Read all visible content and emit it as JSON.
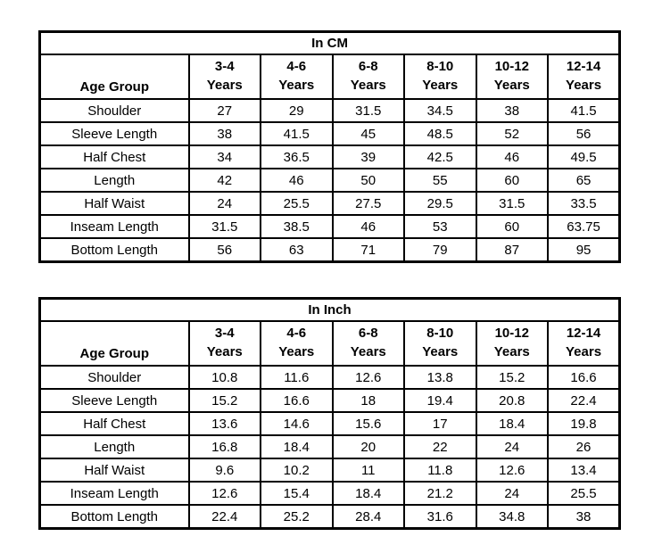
{
  "colors": {
    "border": "#000000",
    "text": "#000000",
    "background": "#ffffff"
  },
  "chart_data": [
    {
      "type": "table",
      "title": "In CM",
      "columns": [
        "Age Group",
        "3-4 Years",
        "4-6 Years",
        "6-8 Years",
        "8-10 Years",
        "10-12 Years",
        "12-14 Years"
      ],
      "rows": [
        [
          "Shoulder",
          27,
          29,
          31.5,
          34.5,
          38,
          41.5
        ],
        [
          "Sleeve Length",
          38,
          41.5,
          45,
          48.5,
          52,
          56
        ],
        [
          "Half Chest",
          34,
          36.5,
          39,
          42.5,
          46,
          49.5
        ],
        [
          "Length",
          42,
          46,
          50,
          55,
          60,
          65
        ],
        [
          "Half Waist",
          24,
          25.5,
          27.5,
          29.5,
          31.5,
          33.5
        ],
        [
          "Inseam Length",
          31.5,
          38.5,
          46,
          53,
          60,
          63.75
        ],
        [
          "Bottom Length",
          56,
          63,
          71,
          79,
          87,
          95
        ]
      ]
    },
    {
      "type": "table",
      "title": "In Inch",
      "columns": [
        "Age Group",
        "3-4 Years",
        "4-6 Years",
        "6-8 Years",
        "8-10 Years",
        "10-12 Years",
        "12-14 Years"
      ],
      "rows": [
        [
          "Shoulder",
          10.8,
          11.6,
          12.6,
          13.8,
          15.2,
          16.6
        ],
        [
          "Sleeve Length",
          15.2,
          16.6,
          18,
          19.4,
          20.8,
          22.4
        ],
        [
          "Half Chest",
          13.6,
          14.6,
          15.6,
          17,
          18.4,
          19.8
        ],
        [
          "Length",
          16.8,
          18.4,
          20,
          22,
          24,
          26
        ],
        [
          "Half Waist",
          9.6,
          10.2,
          11,
          11.8,
          12.6,
          13.4
        ],
        [
          "Inseam Length",
          12.6,
          15.4,
          18.4,
          21.2,
          24,
          25.5
        ],
        [
          "Bottom Length",
          22.4,
          25.2,
          28.4,
          31.6,
          34.8,
          38
        ]
      ]
    }
  ]
}
